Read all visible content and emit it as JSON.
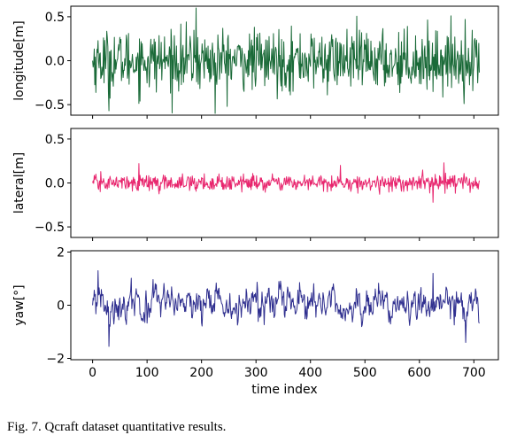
{
  "caption": "Fig. 7.   Qcraft dataset quantitative results.",
  "chart_data": {
    "type": "line",
    "title": "",
    "xlabel": "time index",
    "xlim": [
      -40,
      745
    ],
    "x_ticks": [
      0,
      100,
      200,
      300,
      400,
      500,
      600,
      700
    ],
    "x_tick_labels": [
      "0",
      "100",
      "200",
      "300",
      "400",
      "500",
      "600",
      "700"
    ],
    "n_points": 711,
    "panels": [
      {
        "name": "longitude",
        "ylabel": "longitude[m]",
        "color": "#1a6a38",
        "ylim": [
          -0.62,
          0.62
        ],
        "y_ticks": [
          0.5,
          0.0,
          -0.5
        ],
        "y_tick_labels": [
          "0.5",
          "0.0",
          "−0.5"
        ],
        "amplitude_std": 0.17,
        "approx_peak": [
          [
            190,
            0.6
          ],
          [
            225,
            -0.6
          ],
          [
            30,
            -0.57
          ]
        ]
      },
      {
        "name": "lateral",
        "ylabel": "lateral[m]",
        "color": "#e8266e",
        "ylim": [
          -0.62,
          0.62
        ],
        "y_ticks": [
          0.5,
          0.0,
          -0.5
        ],
        "y_tick_labels": [
          "0.5",
          "0.0",
          "−0.5"
        ],
        "amplitude_std": 0.045,
        "approx_peak": [
          [
            85,
            0.22
          ],
          [
            455,
            0.2
          ],
          [
            645,
            0.23
          ],
          [
            625,
            -0.22
          ]
        ]
      },
      {
        "name": "yaw",
        "ylabel": "yaw[°]",
        "color": "#2f2f8f",
        "ylim": [
          -2.05,
          2.05
        ],
        "y_ticks": [
          2,
          0,
          -2
        ],
        "y_tick_labels": [
          "2",
          "0",
          "−2"
        ],
        "amplitude_std": 0.38,
        "approx_peak": [
          [
            10,
            1.3
          ],
          [
            30,
            -1.55
          ],
          [
            625,
            1.2
          ],
          [
            685,
            -1.4
          ]
        ]
      }
    ]
  }
}
